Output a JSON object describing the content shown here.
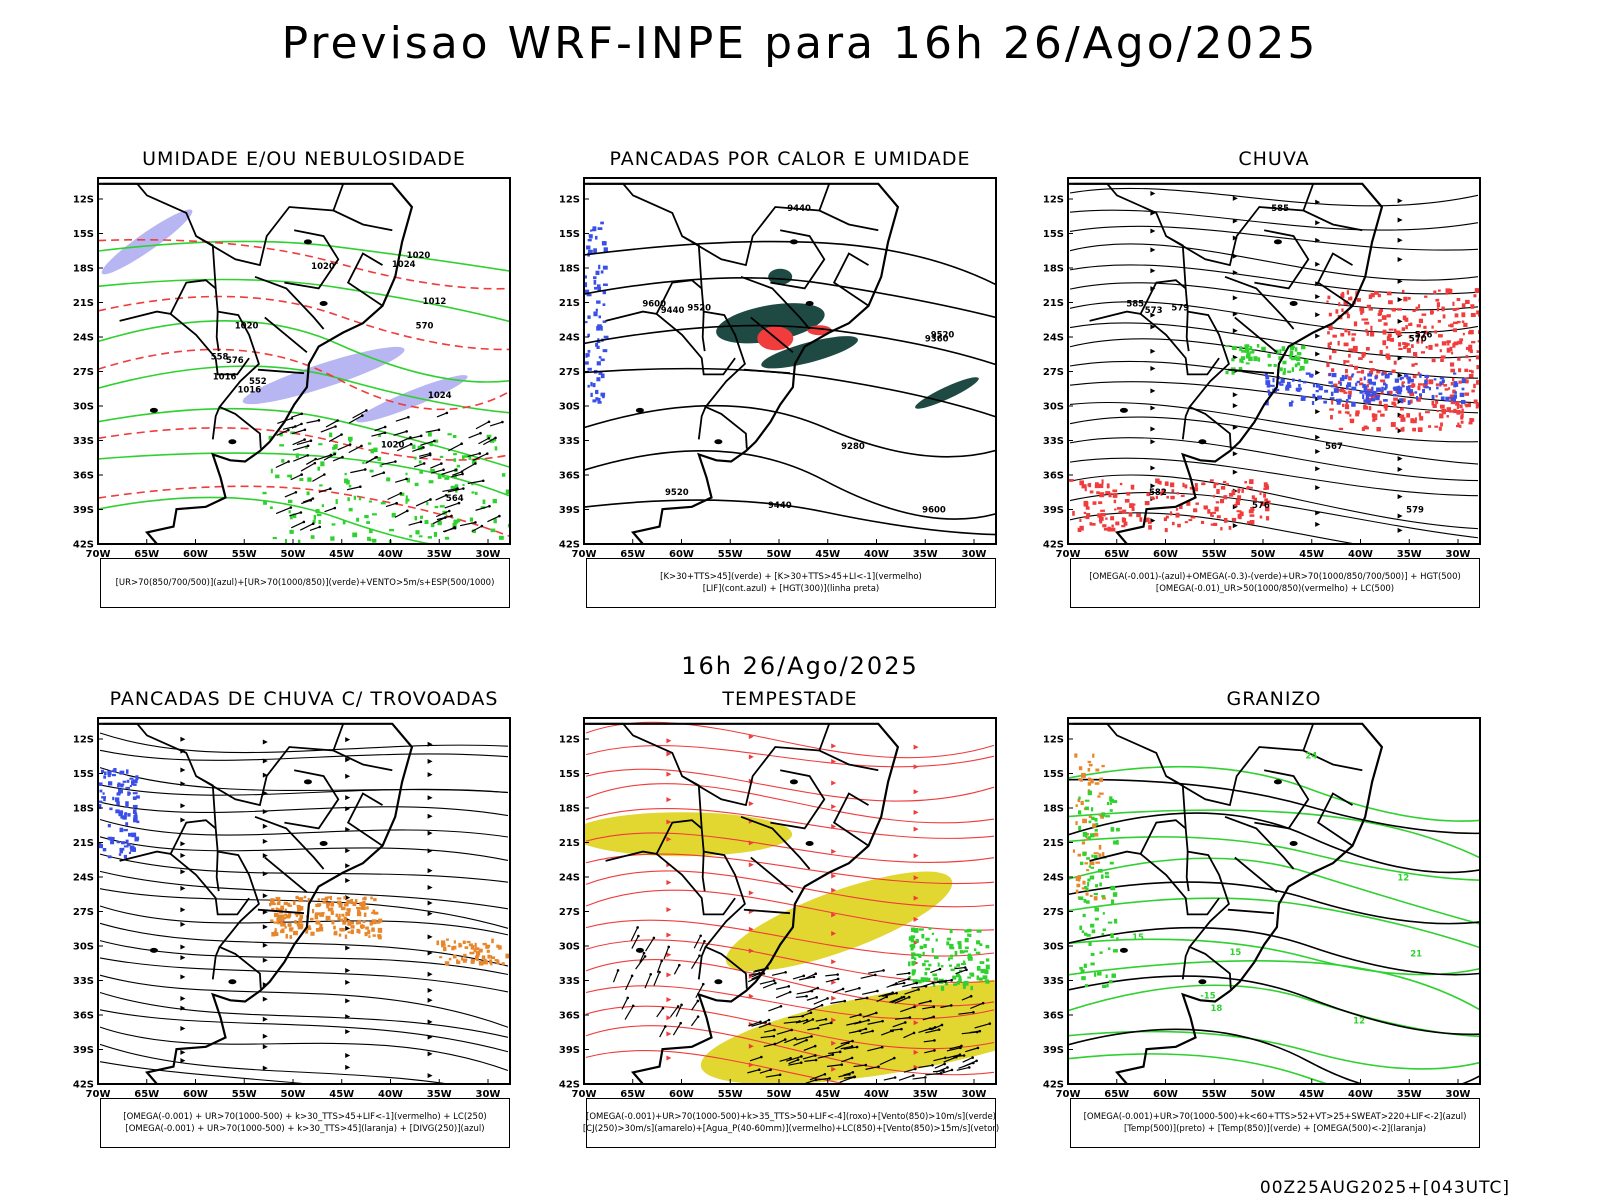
{
  "header": {
    "title": "Previsao WRF-INPE  para 16h 26/Ago/2025",
    "mid_title": "16h 26/Ago/2025",
    "footer": "00Z25AUG2025+[043UTC]"
  },
  "axes": {
    "lat_labels": [
      "12S",
      "15S",
      "18S",
      "21S",
      "24S",
      "27S",
      "30S",
      "33S",
      "36S",
      "39S",
      "42S"
    ],
    "lon_labels": [
      "70W",
      "65W",
      "60W",
      "55W",
      "50W",
      "45W",
      "40W",
      "35W",
      "30W"
    ]
  },
  "colors": {
    "blue": "#3a4fe8",
    "lightblue": "#b7b6f2",
    "green": "#2fd12f",
    "red": "#f03c3c",
    "darkteal": "#1f4a44",
    "orange": "#e7862a",
    "yellow": "#e2d631",
    "black": "#000000"
  },
  "panels": [
    {
      "id": "umidade",
      "title": "UMIDADE E/OU NEBULOSIDADE",
      "legend": [
        "[UR>70(850/700/500)](azul)+[UR>70(1000/850)](verde)+VENTO>5m/s+ESP(500/1000)"
      ],
      "labels": [
        "1020",
        "1016",
        "1012",
        "1024",
        "1020",
        "570",
        "564",
        "558",
        "552",
        "576",
        "1020",
        "1024",
        "1016",
        "1020"
      ]
    },
    {
      "id": "pancadas-calor",
      "title": "PANCADAS POR CALOR E UMIDADE",
      "legend": [
        "[K>30+TTS>45](verde) + [K>30+TTS>45+LI<-1](vermelho)",
        "[LIF](cont.azul) + [HGT(300)](linha preta)"
      ],
      "labels": [
        "9600",
        "9520",
        "9440",
        "9600",
        "9520",
        "9440",
        "9360",
        "9280",
        "9520",
        "9440"
      ]
    },
    {
      "id": "chuva",
      "title": "CHUVA",
      "legend": [
        "[OMEGA(-0.001)-(azul)+OMEGA(-0.3)-(verde)+UR>70(1000/850/700/500)] + HGT(500)",
        "[OMEGA(-0.01)_UR>50(1000/850)(vermelho) + LC(500)"
      ],
      "labels": [
        "585",
        "582",
        "585",
        "579",
        "576",
        "573",
        "570",
        "567",
        "579",
        "576"
      ]
    },
    {
      "id": "trovoadas",
      "title": "PANCADAS DE CHUVA C/ TROVOADAS",
      "legend": [
        "[OMEGA(-0.001) + UR>70(1000-500) + k>30_TTS>45+LIF<-1](vermelho) + LC(250)",
        "[OMEGA(-0.001) + UR>70(1000-500) + k>30_TTS>45](laranja) + [DIVG(250)](azul)"
      ],
      "labels": []
    },
    {
      "id": "tempestade",
      "title": "TEMPESTADE",
      "legend": [
        "[OMEGA(-0.001)+UR>70(1000-500)+k>35_TTS>50+LIF<-4](roxo)+[Vento(850)>10m/s](verde)",
        "[CJ(250)>30m/s](amarelo)+[Agua_P(40-60mm)](vermelho)+LC(850)+[Vento(850)>15m/s](vetor)"
      ],
      "labels": []
    },
    {
      "id": "granizo",
      "title": "GRANIZO",
      "legend": [
        "[OMEGA(-0.001)+UR>70(1000-500)+k<60+TTS>52+VT>25+SWEAT>220+LIF<-2](azul)",
        "[Temp(500)](preto) + [Temp(850)](verde) + [OMEGA(500)<-2](laranja)"
      ],
      "labels": [
        "12",
        "15",
        "18",
        "21",
        "24",
        "-15",
        "15",
        "12"
      ]
    }
  ]
}
